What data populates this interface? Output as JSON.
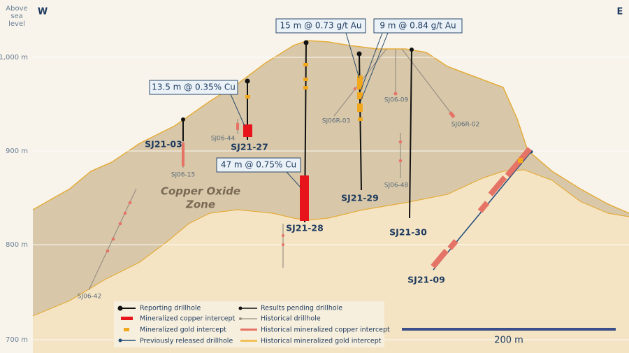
{
  "header": {
    "elevation_label": [
      "Above",
      "sea",
      "level"
    ],
    "west": "W",
    "east": "E"
  },
  "elevation_ticks": [
    "1,000 m",
    "900 m",
    "800 m",
    "700 m"
  ],
  "zone_label": [
    "Copper Oxide",
    "Zone"
  ],
  "callouts": [
    "15 m @ 0.73 g/t Au",
    "9 m @ 0.84 g/t Au",
    "13.5 m @ 0.35% Cu",
    "47 m @ 0.75% Cu"
  ],
  "drillholes": [
    "SJ21-03",
    "SJ21-27",
    "SJ21-28",
    "SJ21-29",
    "SJ21-30",
    "SJ21-09"
  ],
  "historical_holes": [
    "SJ06-44",
    "SJ06-15",
    "SJ06R-03",
    "SJ06-09",
    "SJ06R-02",
    "SJ06-48",
    "SJ06-42"
  ],
  "legend": [
    "Reporting drillhole",
    "Mineralized copper intercept",
    "Mineralized gold intercept",
    "Previously released drillhole",
    "Results pending drillhole",
    "Historical drillhole",
    "Historical mineralized copper intercept",
    "Historical mineralized gold intercept"
  ],
  "scale_bar": "200 m"
}
